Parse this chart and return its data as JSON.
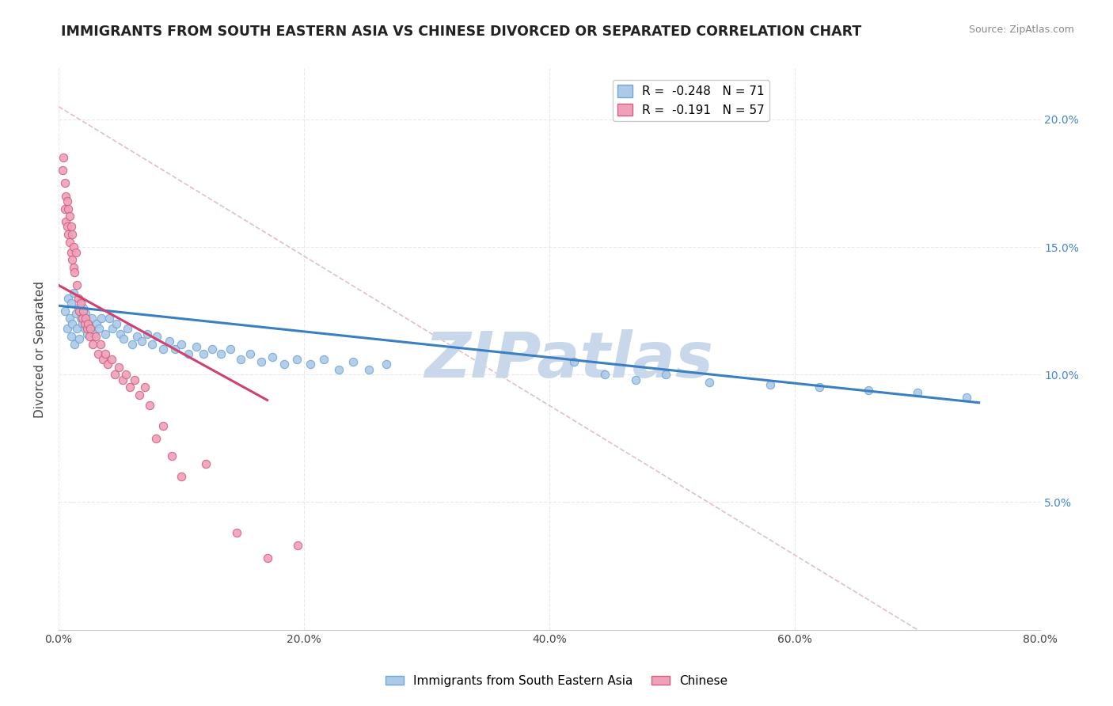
{
  "title": "IMMIGRANTS FROM SOUTH EASTERN ASIA VS CHINESE DIVORCED OR SEPARATED CORRELATION CHART",
  "source_text": "Source: ZipAtlas.com",
  "ylabel": "Divorced or Separated",
  "xlabel_ticks": [
    "0.0%",
    "20.0%",
    "40.0%",
    "60.0%",
    "80.0%"
  ],
  "ylabel_ticks_right": [
    "5.0%",
    "10.0%",
    "15.0%",
    "20.0%"
  ],
  "xlim": [
    0.0,
    0.8
  ],
  "ylim": [
    0.0,
    0.22
  ],
  "series1_name": "Immigrants from South Eastern Asia",
  "series2_name": "Chinese",
  "series1_color": "#adc9e8",
  "series2_color": "#f0a0b8",
  "series1_edge_color": "#6fa8d4",
  "series2_edge_color": "#d06080",
  "trendline1_color": "#3a7fc1",
  "trendline2_color": "#d04070",
  "refline_color": "#e0c0c8",
  "watermark": "ZIPatlas",
  "watermark_color": "#c8d8ea",
  "background_color": "#ffffff",
  "grid_color": "#e8e8e8",
  "legend1_label": "R =  -0.248   N = 71",
  "legend2_label": "R =  -0.191   N = 57",
  "trendline1_x": [
    0.0,
    0.75
  ],
  "trendline1_y": [
    0.127,
    0.089
  ],
  "trendline2_x": [
    0.0,
    0.17
  ],
  "trendline2_y": [
    0.135,
    0.09
  ],
  "refline_x": [
    0.0,
    0.7
  ],
  "refline_y": [
    0.205,
    0.0
  ],
  "series1_x": [
    0.005,
    0.007,
    0.008,
    0.009,
    0.01,
    0.01,
    0.011,
    0.012,
    0.013,
    0.014,
    0.015,
    0.016,
    0.017,
    0.018,
    0.019,
    0.02,
    0.021,
    0.022,
    0.023,
    0.024,
    0.025,
    0.027,
    0.029,
    0.031,
    0.033,
    0.035,
    0.038,
    0.041,
    0.044,
    0.047,
    0.05,
    0.053,
    0.056,
    0.06,
    0.064,
    0.068,
    0.072,
    0.076,
    0.08,
    0.085,
    0.09,
    0.095,
    0.1,
    0.106,
    0.112,
    0.118,
    0.125,
    0.132,
    0.14,
    0.148,
    0.156,
    0.165,
    0.174,
    0.184,
    0.194,
    0.205,
    0.216,
    0.228,
    0.24,
    0.253,
    0.267,
    0.42,
    0.445,
    0.47,
    0.495,
    0.53,
    0.58,
    0.62,
    0.66,
    0.7,
    0.74
  ],
  "series1_y": [
    0.125,
    0.118,
    0.13,
    0.122,
    0.115,
    0.128,
    0.12,
    0.132,
    0.112,
    0.124,
    0.118,
    0.126,
    0.114,
    0.122,
    0.12,
    0.126,
    0.118,
    0.124,
    0.116,
    0.12,
    0.118,
    0.122,
    0.116,
    0.12,
    0.118,
    0.122,
    0.116,
    0.122,
    0.118,
    0.12,
    0.116,
    0.114,
    0.118,
    0.112,
    0.115,
    0.113,
    0.116,
    0.112,
    0.115,
    0.11,
    0.113,
    0.11,
    0.112,
    0.108,
    0.111,
    0.108,
    0.11,
    0.108,
    0.11,
    0.106,
    0.108,
    0.105,
    0.107,
    0.104,
    0.106,
    0.104,
    0.106,
    0.102,
    0.105,
    0.102,
    0.104,
    0.105,
    0.1,
    0.098,
    0.1,
    0.097,
    0.096,
    0.095,
    0.094,
    0.093,
    0.091
  ],
  "series2_x": [
    0.003,
    0.004,
    0.005,
    0.005,
    0.006,
    0.006,
    0.007,
    0.007,
    0.008,
    0.008,
    0.009,
    0.009,
    0.01,
    0.01,
    0.011,
    0.011,
    0.012,
    0.012,
    0.013,
    0.014,
    0.015,
    0.016,
    0.017,
    0.018,
    0.019,
    0.02,
    0.021,
    0.022,
    0.023,
    0.024,
    0.025,
    0.026,
    0.028,
    0.03,
    0.032,
    0.034,
    0.036,
    0.038,
    0.04,
    0.043,
    0.046,
    0.049,
    0.052,
    0.055,
    0.058,
    0.062,
    0.066,
    0.07,
    0.074,
    0.079,
    0.085,
    0.092,
    0.1,
    0.12,
    0.145,
    0.17,
    0.195
  ],
  "series2_y": [
    0.18,
    0.185,
    0.165,
    0.175,
    0.16,
    0.17,
    0.158,
    0.168,
    0.155,
    0.165,
    0.152,
    0.162,
    0.148,
    0.158,
    0.145,
    0.155,
    0.142,
    0.15,
    0.14,
    0.148,
    0.135,
    0.13,
    0.125,
    0.128,
    0.122,
    0.125,
    0.12,
    0.122,
    0.118,
    0.12,
    0.115,
    0.118,
    0.112,
    0.115,
    0.108,
    0.112,
    0.106,
    0.108,
    0.104,
    0.106,
    0.1,
    0.103,
    0.098,
    0.1,
    0.095,
    0.098,
    0.092,
    0.095,
    0.088,
    0.075,
    0.08,
    0.068,
    0.06,
    0.065,
    0.038,
    0.028,
    0.033
  ]
}
